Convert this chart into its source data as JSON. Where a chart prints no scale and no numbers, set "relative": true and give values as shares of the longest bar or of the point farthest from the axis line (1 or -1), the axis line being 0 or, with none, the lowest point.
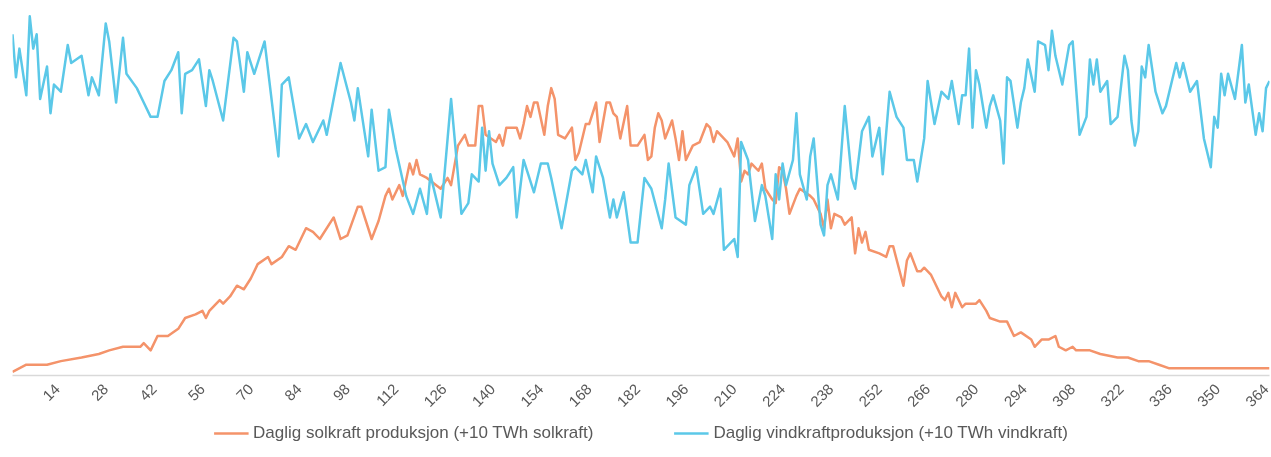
{
  "chart_data": {
    "type": "line",
    "relative": true,
    "xlim": [
      1,
      365
    ],
    "xticks": [
      14,
      28,
      42,
      56,
      70,
      84,
      98,
      112,
      126,
      140,
      154,
      168,
      182,
      196,
      210,
      224,
      238,
      252,
      266,
      280,
      294,
      308,
      322,
      336,
      350,
      364
    ],
    "grid": false,
    "legend": "bottom",
    "marker": "none",
    "line_style": "solid",
    "series": [
      {
        "name": "Daglig solkraft produksjon (+10 TWh solkraft)",
        "color": "#f4936a",
        "x": [
          1,
          5,
          11,
          15,
          21,
          26,
          29,
          33,
          35,
          38,
          39,
          41,
          43,
          46,
          49,
          51,
          54,
          56,
          57,
          58,
          61,
          62,
          64,
          66,
          68,
          70,
          72,
          75,
          76,
          79,
          81,
          83,
          86,
          88,
          90,
          94,
          96,
          98,
          101,
          102,
          105,
          107,
          109,
          110,
          111,
          113,
          114,
          116,
          117,
          118,
          119,
          121,
          125,
          127,
          128,
          130,
          132,
          133,
          135,
          136,
          137,
          138,
          141,
          142,
          143,
          144,
          147,
          148,
          149,
          150,
          151,
          152,
          153,
          155,
          156,
          157,
          158,
          159,
          161,
          163,
          164,
          165,
          167,
          168,
          170,
          171,
          173,
          174,
          175,
          176,
          177,
          179,
          180,
          182,
          184,
          185,
          186,
          187,
          188,
          189,
          190,
          192,
          193,
          194,
          195,
          196,
          198,
          200,
          202,
          203,
          204,
          205,
          208,
          210,
          211,
          212,
          213,
          214,
          215,
          217,
          218,
          219,
          221,
          222,
          223,
          224,
          225,
          226,
          228,
          229,
          232,
          233,
          235,
          236,
          237,
          238,
          239,
          241,
          242,
          244,
          245,
          246,
          247,
          248,
          249,
          252,
          254,
          255,
          256,
          259,
          260,
          261,
          263,
          264,
          265,
          267,
          270,
          271,
          272,
          273,
          274,
          276,
          277,
          280,
          281,
          283,
          284,
          287,
          289,
          291,
          293,
          296,
          297,
          299,
          301,
          303,
          304,
          306,
          308,
          309,
          313,
          316,
          321,
          324,
          327,
          330,
          333,
          336,
          339,
          342,
          345,
          348,
          351,
          353,
          356,
          362,
          365
        ],
        "values": [
          0.01,
          0.03,
          0.03,
          0.04,
          0.05,
          0.06,
          0.07,
          0.08,
          0.08,
          0.08,
          0.09,
          0.07,
          0.11,
          0.11,
          0.13,
          0.16,
          0.17,
          0.18,
          0.16,
          0.18,
          0.21,
          0.2,
          0.22,
          0.25,
          0.24,
          0.27,
          0.31,
          0.33,
          0.31,
          0.33,
          0.36,
          0.35,
          0.41,
          0.4,
          0.38,
          0.44,
          0.38,
          0.39,
          0.47,
          0.47,
          0.38,
          0.43,
          0.5,
          0.52,
          0.49,
          0.53,
          0.5,
          0.59,
          0.56,
          0.6,
          0.56,
          0.55,
          0.52,
          0.55,
          0.53,
          0.64,
          0.67,
          0.64,
          0.64,
          0.75,
          0.75,
          0.67,
          0.65,
          0.67,
          0.64,
          0.69,
          0.69,
          0.66,
          0.7,
          0.75,
          0.72,
          0.76,
          0.76,
          0.67,
          0.75,
          0.8,
          0.77,
          0.67,
          0.66,
          0.69,
          0.6,
          0.62,
          0.7,
          0.7,
          0.76,
          0.65,
          0.76,
          0.76,
          0.73,
          0.72,
          0.66,
          0.75,
          0.64,
          0.64,
          0.67,
          0.6,
          0.61,
          0.69,
          0.73,
          0.71,
          0.66,
          0.71,
          0.66,
          0.6,
          0.68,
          0.6,
          0.64,
          0.65,
          0.7,
          0.69,
          0.65,
          0.68,
          0.65,
          0.61,
          0.66,
          0.54,
          0.57,
          0.56,
          0.59,
          0.57,
          0.59,
          0.52,
          0.49,
          0.48,
          0.58,
          0.57,
          0.52,
          0.45,
          0.5,
          0.52,
          0.5,
          0.49,
          0.45,
          0.41,
          0.49,
          0.41,
          0.45,
          0.44,
          0.42,
          0.44,
          0.34,
          0.41,
          0.37,
          0.4,
          0.35,
          0.34,
          0.33,
          0.36,
          0.36,
          0.25,
          0.32,
          0.34,
          0.29,
          0.29,
          0.3,
          0.28,
          0.22,
          0.21,
          0.23,
          0.19,
          0.23,
          0.19,
          0.2,
          0.2,
          0.21,
          0.18,
          0.16,
          0.15,
          0.15,
          0.11,
          0.12,
          0.1,
          0.08,
          0.1,
          0.1,
          0.11,
          0.08,
          0.07,
          0.08,
          0.07,
          0.07,
          0.06,
          0.05,
          0.05,
          0.04,
          0.04,
          0.03,
          0.02,
          0.02,
          0.02,
          0.02,
          0.02,
          0.02,
          0.02,
          0.02,
          0.02,
          0.02
        ]
      },
      {
        "name": "Daglig vindkraftproduksjon (+10 TWh vindkraft)",
        "color": "#5bc8e8",
        "x": [
          1,
          2,
          3,
          5,
          6,
          7,
          8,
          9,
          11,
          12,
          13,
          15,
          17,
          18,
          21,
          23,
          24,
          26,
          28,
          29,
          31,
          33,
          34,
          37,
          39,
          41,
          43,
          45,
          47,
          49,
          50,
          51,
          53,
          55,
          57,
          58,
          59,
          62,
          65,
          66,
          68,
          69,
          71,
          74,
          78,
          79,
          81,
          84,
          86,
          88,
          91,
          92,
          96,
          99,
          100,
          101,
          104,
          105,
          107,
          109,
          110,
          112,
          115,
          117,
          119,
          121,
          122,
          125,
          128,
          131,
          133,
          134,
          136,
          137,
          138,
          139,
          140,
          142,
          144,
          146,
          147,
          149,
          152,
          154,
          156,
          157,
          160,
          163,
          164,
          166,
          167,
          169,
          170,
          172,
          174,
          175,
          176,
          178,
          180,
          182,
          184,
          186,
          189,
          190,
          191,
          193,
          196,
          197,
          199,
          201,
          203,
          204,
          206,
          207,
          210,
          211,
          212,
          214,
          216,
          218,
          219,
          221,
          222,
          223,
          224,
          225,
          227,
          228,
          229,
          231,
          232,
          233,
          235,
          236,
          237,
          238,
          240,
          242,
          244,
          245,
          247,
          249,
          250,
          252,
          253,
          255,
          257,
          259,
          260,
          262,
          263,
          265,
          266,
          268,
          270,
          272,
          273,
          275,
          276,
          277,
          278,
          279,
          280,
          281,
          283,
          284,
          285,
          287,
          288,
          289,
          290,
          292,
          293,
          294,
          295,
          297,
          298,
          300,
          301,
          302,
          303,
          305,
          307,
          308,
          310,
          312,
          313,
          314,
          315,
          316,
          318,
          319,
          321,
          323,
          324,
          325,
          326,
          327,
          328,
          329,
          330,
          332,
          334,
          335,
          338,
          339,
          340,
          342,
          344,
          346,
          348,
          349,
          350,
          351,
          352,
          353,
          355,
          357,
          358,
          359,
          361,
          362,
          363,
          364,
          365
        ],
        "values": [
          0.95,
          0.83,
          0.91,
          0.78,
          1.0,
          0.91,
          0.95,
          0.77,
          0.86,
          0.73,
          0.81,
          0.79,
          0.92,
          0.87,
          0.89,
          0.78,
          0.83,
          0.78,
          0.98,
          0.93,
          0.76,
          0.94,
          0.84,
          0.8,
          0.76,
          0.72,
          0.72,
          0.82,
          0.85,
          0.9,
          0.73,
          0.84,
          0.85,
          0.88,
          0.75,
          0.85,
          0.82,
          0.71,
          0.94,
          0.93,
          0.79,
          0.9,
          0.84,
          0.93,
          0.61,
          0.81,
          0.83,
          0.66,
          0.7,
          0.65,
          0.71,
          0.67,
          0.87,
          0.76,
          0.71,
          0.8,
          0.61,
          0.74,
          0.57,
          0.58,
          0.74,
          0.63,
          0.5,
          0.45,
          0.52,
          0.45,
          0.56,
          0.44,
          0.77,
          0.45,
          0.48,
          0.56,
          0.54,
          0.69,
          0.57,
          0.68,
          0.59,
          0.53,
          0.55,
          0.58,
          0.44,
          0.6,
          0.51,
          0.59,
          0.59,
          0.55,
          0.41,
          0.57,
          0.58,
          0.56,
          0.6,
          0.51,
          0.61,
          0.55,
          0.44,
          0.49,
          0.44,
          0.51,
          0.37,
          0.37,
          0.55,
          0.52,
          0.41,
          0.49,
          0.59,
          0.44,
          0.42,
          0.53,
          0.58,
          0.45,
          0.47,
          0.45,
          0.52,
          0.35,
          0.38,
          0.33,
          0.65,
          0.6,
          0.43,
          0.53,
          0.5,
          0.38,
          0.56,
          0.49,
          0.59,
          0.53,
          0.6,
          0.73,
          0.56,
          0.49,
          0.61,
          0.66,
          0.42,
          0.39,
          0.53,
          0.56,
          0.49,
          0.75,
          0.55,
          0.52,
          0.68,
          0.72,
          0.61,
          0.69,
          0.56,
          0.79,
          0.72,
          0.69,
          0.6,
          0.6,
          0.54,
          0.66,
          0.82,
          0.7,
          0.79,
          0.77,
          0.82,
          0.7,
          0.78,
          0.78,
          0.91,
          0.69,
          0.85,
          0.81,
          0.69,
          0.75,
          0.78,
          0.71,
          0.59,
          0.83,
          0.82,
          0.69,
          0.76,
          0.8,
          0.88,
          0.79,
          0.93,
          0.92,
          0.85,
          0.96,
          0.89,
          0.81,
          0.92,
          0.93,
          0.67,
          0.72,
          0.88,
          0.81,
          0.88,
          0.79,
          0.82,
          0.7,
          0.72,
          0.89,
          0.85,
          0.71,
          0.64,
          0.68,
          0.86,
          0.83,
          0.92,
          0.79,
          0.73,
          0.75,
          0.87,
          0.83,
          0.87,
          0.79,
          0.82,
          0.66,
          0.58,
          0.72,
          0.69,
          0.84,
          0.78,
          0.84,
          0.77,
          0.92,
          0.76,
          0.81,
          0.67,
          0.73,
          0.68,
          0.8,
          0.82
        ]
      }
    ]
  }
}
